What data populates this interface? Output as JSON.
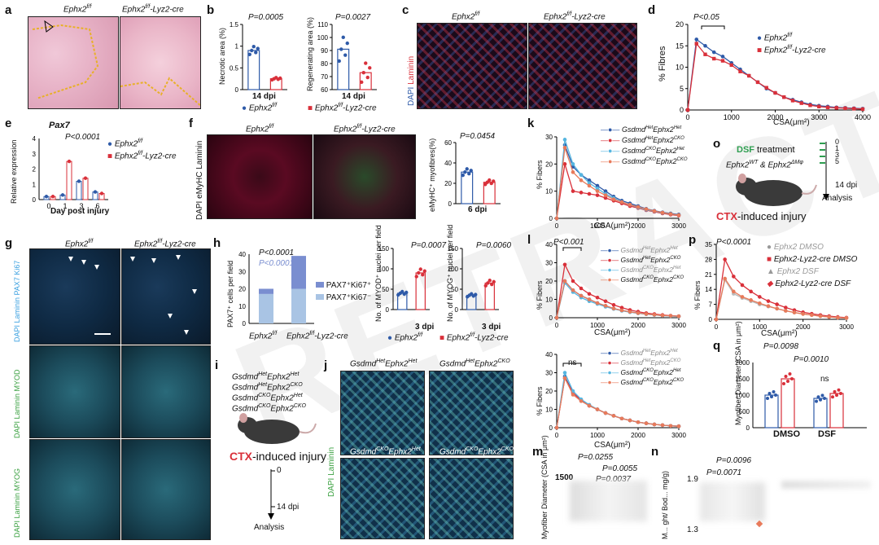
{
  "panels": {
    "a": "a",
    "b": "b",
    "c": "c",
    "d": "d",
    "e": "e",
    "f": "f",
    "g": "g",
    "h": "h",
    "i": "i",
    "j": "j",
    "k": "k",
    "l": "l",
    "m": "m",
    "n": "n",
    "o": "o",
    "p": "p",
    "q": "q"
  },
  "geno": {
    "ff": "Ephx2",
    "ff_sup": "f/f",
    "cre": "Ephx2",
    "cre_sup": "f/f",
    "cre_suffix": "-Lyz2-cre"
  },
  "a": {
    "left": "Ephx2",
    "right": "Ephx2"
  },
  "b": {
    "necrotic_label": "Necrotic area (%)",
    "regen_label": "Regenerating area (%)",
    "p1": "P=0.0005",
    "p2": "P=0.0027",
    "dpi1": "14 dpi",
    "dpi2": "14 dpi",
    "leg_ff": "Ephx2",
    "leg_cre": "Ephx2"
  },
  "c": {
    "left": "Ephx2",
    "right": "Ephx2",
    "stain_dapi": "DAPI",
    "stain_laminin": "Laminin"
  },
  "d": {
    "p": "P<0.05",
    "ylabel": "% Fibres",
    "xlabel": "CSA(μm²)",
    "leg_ff": "Ephx2",
    "leg_cre": "Ephx2"
  },
  "e": {
    "title": "Pax7",
    "ylabel": "Relative expression",
    "xlabel": "Day post injury",
    "p": "P<0.0001",
    "leg_ff": "Ephx2",
    "leg_cre": "Ephx2"
  },
  "f": {
    "left": "Ephx2",
    "right": "Ephx2",
    "stain": "DAPI eMyHC Laminin",
    "ylabel": "eMyHC⁺ myofibres(%)",
    "p": "P=0.0454",
    "dpi": "6 dpi"
  },
  "g": {
    "top": "Ephx2",
    "right": "Ephx2",
    "row1": "DAPI Laminin PAX7 Ki67",
    "row2": "DAPI Laminin MYOD",
    "row3": "DAPI Laminin MYOG"
  },
  "h": {
    "p1": "P<0.0001",
    "p2": "P<0.0001",
    "ylabel": "PAX7⁺ cells per field",
    "leg1": "PAX7⁺Ki67⁺",
    "leg2": "PAX7⁺Ki67⁻",
    "x1": "Ephx2",
    "x2": "Ephx2",
    "myod_label": "No. of MYOD⁺ nuclei per field",
    "myog_label": "No. of MYOG⁺ nuclei per field",
    "p3": "P=0.0007",
    "p4": "P=0.0060",
    "dpi1": "3 dpi",
    "dpi2": "3 dpi",
    "leg_ff": "Ephx2",
    "leg_cre": "Ephx2"
  },
  "i": {
    "g1": "Gsdmd",
    "g2": "Gsdmd",
    "g3": "Gsdmd",
    "g4": "Gsdmd",
    "title_ctx": "CTX",
    "title_rest": "-induced injury",
    "t0": "0",
    "t14": "14 dpi",
    "analysis": "Analysis"
  },
  "j": {
    "tl": "Gsdmd",
    "tr": "Gsdmd",
    "bl": "Gsdmd",
    "br": "Gsdmd",
    "stain": "DAPI Laminin"
  },
  "k": {
    "ylabel": "% Fibers",
    "xlabel": "CSA(μm²)"
  },
  "l": {
    "p": "P<0.001",
    "ns": "ns",
    "ylabel": "% Fibers",
    "xlabel": "CSA(μm²)"
  },
  "m": {
    "p1": "P=0.0255",
    "p2": "P=0.0055",
    "p3": "P=0.0037",
    "ylabel": "Myofiber Diameter (CSA in μm²)",
    "tick": "1500"
  },
  "n": {
    "p1": "P=0.0096",
    "p2": "P=0.0071",
    "ylabel": "M... ght/ Bod... mg/g)",
    "t1": "1.9",
    "t2": "1.3"
  },
  "o": {
    "dsf": "DSF",
    "treatment": " treatment",
    "geno": "Ephx2",
    "days": [
      "0",
      "1",
      "3",
      "5"
    ],
    "dpi": "14 dpi",
    "analysis": "Analysis",
    "ctx": "CTX",
    "injury": "-induced injury"
  },
  "p": {
    "p": "P<0.0001",
    "ylabel": "% Fibers",
    "xlabel": "CSA(μm²)",
    "leg1": "Ephx2 DMSO",
    "leg2": "Ephx2-Lyz2-cre DMSO",
    "leg3": "Ephx2 DSF",
    "leg4": "Ephx2-Lyz2-cre DSF"
  },
  "q": {
    "p1": "P=0.0098",
    "p2": "P=0.0010",
    "ns": "ns",
    "ylabel": "Myofiber Diameter (CSA in μm²)",
    "x1": "DMSO",
    "x2": "DSF"
  },
  "colors": {
    "blue": "#2e5aa8",
    "red": "#d9303a",
    "lightblue": "#56b6e0",
    "salmon": "#e87a5a"
  },
  "chart_data": [
    {
      "type": "line",
      "title": "",
      "xlabel": "CSA(μm²)",
      "ylabel": "% Fibres",
      "x": [
        0,
        200,
        400,
        600,
        800,
        1000,
        1200,
        1400,
        1600,
        1800,
        2000,
        2200,
        2400,
        2600,
        2800,
        3000,
        3200,
        3400,
        3600,
        3800,
        4000
      ],
      "xlim": [
        0,
        4000
      ],
      "ylim": [
        0,
        20
      ],
      "series": [
        {
          "name": "Ephx2f/f",
          "values": [
            0,
            16.5,
            15,
            13.5,
            12.5,
            11,
            9.5,
            8,
            6.5,
            5,
            4,
            3,
            2.4,
            1.8,
            1.3,
            1,
            0.8,
            0.6,
            0.5,
            0.4,
            0.3
          ]
        },
        {
          "name": "Ephx2f/f-Lyz2-cre",
          "values": [
            0,
            15.5,
            13,
            12,
            11.5,
            10.5,
            9,
            8,
            6.5,
            5.2,
            4,
            3,
            2.2,
            1.6,
            1.1,
            0.8,
            0.6,
            0.5,
            0.4,
            0.3,
            0.2
          ]
        }
      ]
    },
    {
      "type": "line",
      "title": "",
      "xlabel": "CSA(μm²)",
      "ylabel": "% Fibers",
      "x": [
        0,
        200,
        400,
        600,
        800,
        1000,
        1200,
        1400,
        1600,
        1800,
        2000,
        2200,
        2400,
        2600,
        2800,
        3000
      ],
      "xlim": [
        0,
        3000
      ],
      "ylim": [
        0,
        30
      ],
      "series": [
        {
          "name": "GsdmdHetEphx2Het",
          "values": [
            0,
            27,
            19,
            16,
            14,
            12,
            10,
            8,
            6.5,
            5.5,
            4.5,
            3.5,
            2.8,
            2.2,
            1.8,
            1.4
          ]
        },
        {
          "name": "GsdmdHetEphx2CKO",
          "values": [
            0,
            20,
            10,
            9.5,
            9,
            8.5,
            7.5,
            6.5,
            5.5,
            4.5,
            3.8,
            3,
            2.4,
            1.8,
            1.4,
            1
          ]
        },
        {
          "name": "GsdmdCKOEphx2Het",
          "values": [
            0,
            29,
            20,
            16,
            13,
            11,
            9,
            7.5,
            6,
            5,
            4,
            3.2,
            2.6,
            2,
            1.6,
            1.2
          ]
        },
        {
          "name": "GsdmdCKOEphx2CKO",
          "values": [
            0,
            26,
            17,
            14,
            12,
            10,
            8.5,
            7,
            6,
            5,
            4.2,
            3.4,
            2.7,
            2.1,
            1.6,
            1.2
          ]
        }
      ]
    },
    {
      "type": "line",
      "title": "",
      "xlabel": "CSA(μm²)",
      "ylabel": "% Fibers",
      "x": [
        0,
        200,
        400,
        600,
        800,
        1000,
        1200,
        1400,
        1600,
        1800,
        2000,
        2200,
        2400,
        2600,
        2800,
        3000
      ],
      "xlim": [
        0,
        3000
      ],
      "ylim": [
        0,
        40
      ],
      "series": [
        {
          "name": "GsdmdHetEphx2Het",
          "values": [
            0,
            20,
            15,
            12,
            10,
            8,
            6.5,
            5,
            4,
            3.2,
            2.5,
            2,
            1.6,
            1.2,
            1,
            0.8
          ]
        },
        {
          "name": "GsdmdHetEphx2CKO",
          "values": [
            0,
            29,
            20,
            16,
            13,
            11,
            9,
            7,
            5.5,
            4.2,
            3.3,
            2.5,
            2,
            1.5,
            1.1,
            0.8
          ]
        },
        {
          "name": "GsdmdCKOEphx2Het",
          "values": [
            0,
            19,
            14,
            11,
            9,
            7.5,
            6,
            4.8,
            3.8,
            3,
            2.4,
            1.9,
            1.5,
            1.1,
            0.9,
            0.7
          ]
        },
        {
          "name": "GsdmdCKOEphx2CKO",
          "values": [
            0,
            20,
            15,
            12,
            10,
            8,
            6.5,
            5,
            4,
            3.2,
            2.5,
            2,
            1.6,
            1.2,
            1,
            0.8
          ]
        }
      ]
    },
    {
      "type": "line",
      "title": "",
      "xlabel": "CSA(μm²)",
      "ylabel": "% Fibers",
      "x": [
        0,
        200,
        400,
        600,
        800,
        1000,
        1200,
        1400,
        1600,
        1800,
        2000,
        2200,
        2400,
        2600,
        2800,
        3000
      ],
      "xlim": [
        0,
        3000
      ],
      "ylim": [
        0,
        40
      ],
      "series": [
        {
          "name": "GsdmdHetEphx2Het",
          "values": [
            0,
            28,
            19,
            15,
            12,
            10,
            8,
            6.5,
            5,
            4,
            3,
            2.4,
            1.8,
            1.4,
            1,
            0.8
          ]
        },
        {
          "name": "GsdmdHetEphx2CKO",
          "values": [
            0,
            27,
            19,
            15,
            12,
            10,
            8,
            6.5,
            5,
            4,
            3,
            2.4,
            1.8,
            1.4,
            1,
            0.8
          ]
        },
        {
          "name": "GsdmdCKOEphx2Het",
          "values": [
            0,
            30,
            20,
            15.5,
            12.5,
            10,
            8,
            6.5,
            5,
            4,
            3,
            2.4,
            1.8,
            1.4,
            1,
            0.8
          ]
        },
        {
          "name": "GsdmdCKOEphx2CKO",
          "values": [
            0,
            27,
            18,
            14.5,
            12,
            10,
            8,
            6.5,
            5,
            4,
            3,
            2.4,
            1.8,
            1.4,
            1,
            0.8
          ]
        }
      ]
    },
    {
      "type": "line",
      "title": "",
      "xlabel": "CSA(μm²)",
      "ylabel": "% Fibers",
      "x": [
        0,
        200,
        400,
        600,
        800,
        1000,
        1200,
        1400,
        1600,
        1800,
        2000,
        2200,
        2400,
        2600,
        2800,
        3000
      ],
      "xlim": [
        0,
        3000
      ],
      "ylim": [
        0,
        35
      ],
      "series": [
        {
          "name": "Ephx2f/f DMSO",
          "values": [
            0,
            19,
            12,
            10,
            8.5,
            7,
            6,
            5,
            4,
            3.2,
            2.5,
            2,
            1.5,
            1.1,
            0.8,
            0.6
          ]
        },
        {
          "name": "Ephx2f/f-Lyz2-cre DMSO",
          "values": [
            0,
            28,
            20,
            16,
            13,
            10.5,
            8.5,
            7,
            5.5,
            4.3,
            3.3,
            2.6,
            2,
            1.5,
            1.1,
            0.8
          ]
        },
        {
          "name": "Ephx2f/f DSF",
          "values": [
            0,
            18.5,
            12,
            10,
            8.5,
            7,
            6,
            5,
            4,
            3.2,
            2.5,
            2,
            1.5,
            1.1,
            0.8,
            0.6
          ]
        },
        {
          "name": "Ephx2f/f-Lyz2-cre DSF",
          "values": [
            0,
            19,
            13,
            10.5,
            9,
            7.5,
            6.2,
            5,
            4,
            3.2,
            2.5,
            2,
            1.5,
            1.1,
            0.8,
            0.6
          ]
        }
      ]
    },
    {
      "type": "bar",
      "title": "",
      "ylabel": "Necrotic area (%)",
      "categories": [
        "Ephx2f/f",
        "Ephx2f/f-Lyz2-cre"
      ],
      "values": [
        0.9,
        0.25
      ],
      "ylim": [
        0,
        1.5
      ]
    },
    {
      "type": "bar",
      "title": "",
      "ylabel": "Regenerating area (%)",
      "categories": [
        "Ephx2f/f",
        "Ephx2f/f-Lyz2-cre"
      ],
      "values": [
        91,
        73
      ],
      "ylim": [
        60,
        110
      ]
    },
    {
      "type": "bar",
      "title": "",
      "ylabel": "eMyHC⁺ myofibres(%)",
      "categories": [
        "Ephx2f/f",
        "Ephx2f/f-Lyz2-cre"
      ],
      "values": [
        31,
        21
      ],
      "ylim": [
        0,
        60
      ]
    },
    {
      "type": "bar",
      "title": "",
      "ylabel": "PAX7⁺ cells per field",
      "categories": [
        "Ephx2f/f",
        "Ephx2f/f-Lyz2-cre"
      ],
      "series": [
        {
          "name": "PAX7⁺Ki67⁻",
          "values": [
            17,
            20
          ]
        },
        {
          "name": "PAX7⁺Ki67⁺",
          "values": [
            3,
            19
          ]
        }
      ],
      "ylim": [
        0,
        40
      ]
    },
    {
      "type": "bar",
      "title": "",
      "ylabel": "No. of MYOD⁺ nuclei per field",
      "categories": [
        "Ephx2f/f",
        "Ephx2f/f-Lyz2-cre"
      ],
      "values": [
        40,
        90
      ],
      "ylim": [
        0,
        150
      ]
    },
    {
      "type": "bar",
      "title": "",
      "ylabel": "No. of MYOG⁺ nuclei per field",
      "categories": [
        "Ephx2f/f",
        "Ephx2f/f-Lyz2-cre"
      ],
      "values": [
        35,
        65
      ],
      "ylim": [
        0,
        150
      ]
    },
    {
      "type": "bar",
      "title": "",
      "ylabel": "Myofiber Diameter (CSA in μm²)",
      "categories": [
        "DMSO",
        "DSF"
      ],
      "series": [
        {
          "name": "Ephx2f/f",
          "values": [
            1000,
            900
          ]
        },
        {
          "name": "Ephx2f/f-Lyz2-cre",
          "values": [
            1500,
            1050
          ]
        }
      ],
      "ylim": [
        0,
        2000
      ]
    },
    {
      "type": "scatter",
      "title": "Pax7",
      "xlabel": "Day post injury",
      "ylabel": "Relative expression",
      "x": [
        0,
        1,
        3,
        6
      ],
      "series": [
        {
          "name": "Ephx2f/f",
          "values": [
            0.2,
            0.3,
            1.2,
            0.5
          ]
        },
        {
          "name": "Ephx2f/f-Lyz2-cre",
          "values": [
            0.2,
            2.5,
            1.4,
            0.4
          ]
        }
      ],
      "ylim": [
        0,
        4
      ]
    }
  ]
}
